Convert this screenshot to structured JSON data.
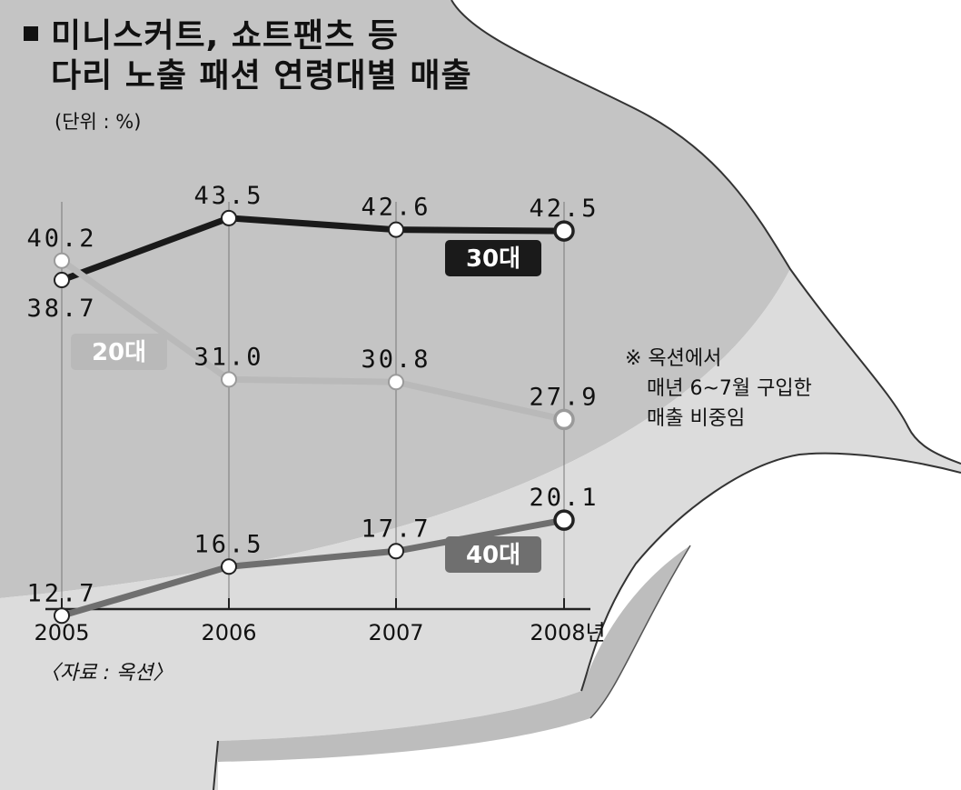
{
  "title_line1": "미니스커트, 쇼트팬츠 등",
  "title_line2": "다리 노출 패션 연령대별 매출",
  "unit": "(단위 : %)",
  "source": "〈자료 : 옥션〉",
  "note": [
    "※ 옥션에서",
    "매년 6~7월 구입한",
    "매출 비중임"
  ],
  "colors": {
    "s30": "#1a1a1a",
    "s20": "#b9b9b9",
    "s40": "#6f6f6f",
    "bg_dark": "#c7c7c7",
    "bg_light": "#dedede"
  },
  "chart_data": {
    "type": "line",
    "x": [
      "2005",
      "2006",
      "2007",
      "2008년"
    ],
    "ylabel": "%",
    "grid": true,
    "series": [
      {
        "name": "30대",
        "values": [
          38.7,
          43.5,
          42.6,
          42.5
        ]
      },
      {
        "name": "20대",
        "values": [
          40.2,
          31.0,
          30.8,
          27.9
        ]
      },
      {
        "name": "40대",
        "values": [
          12.7,
          16.5,
          17.7,
          20.1
        ]
      }
    ],
    "data_labels": [
      [
        "38.7",
        "43.5",
        "42.6",
        "42.5"
      ],
      [
        "40.2",
        "31.0",
        "30.8",
        "27.9"
      ],
      [
        "12.7",
        "16.5",
        "17.7",
        "20.1"
      ]
    ]
  }
}
